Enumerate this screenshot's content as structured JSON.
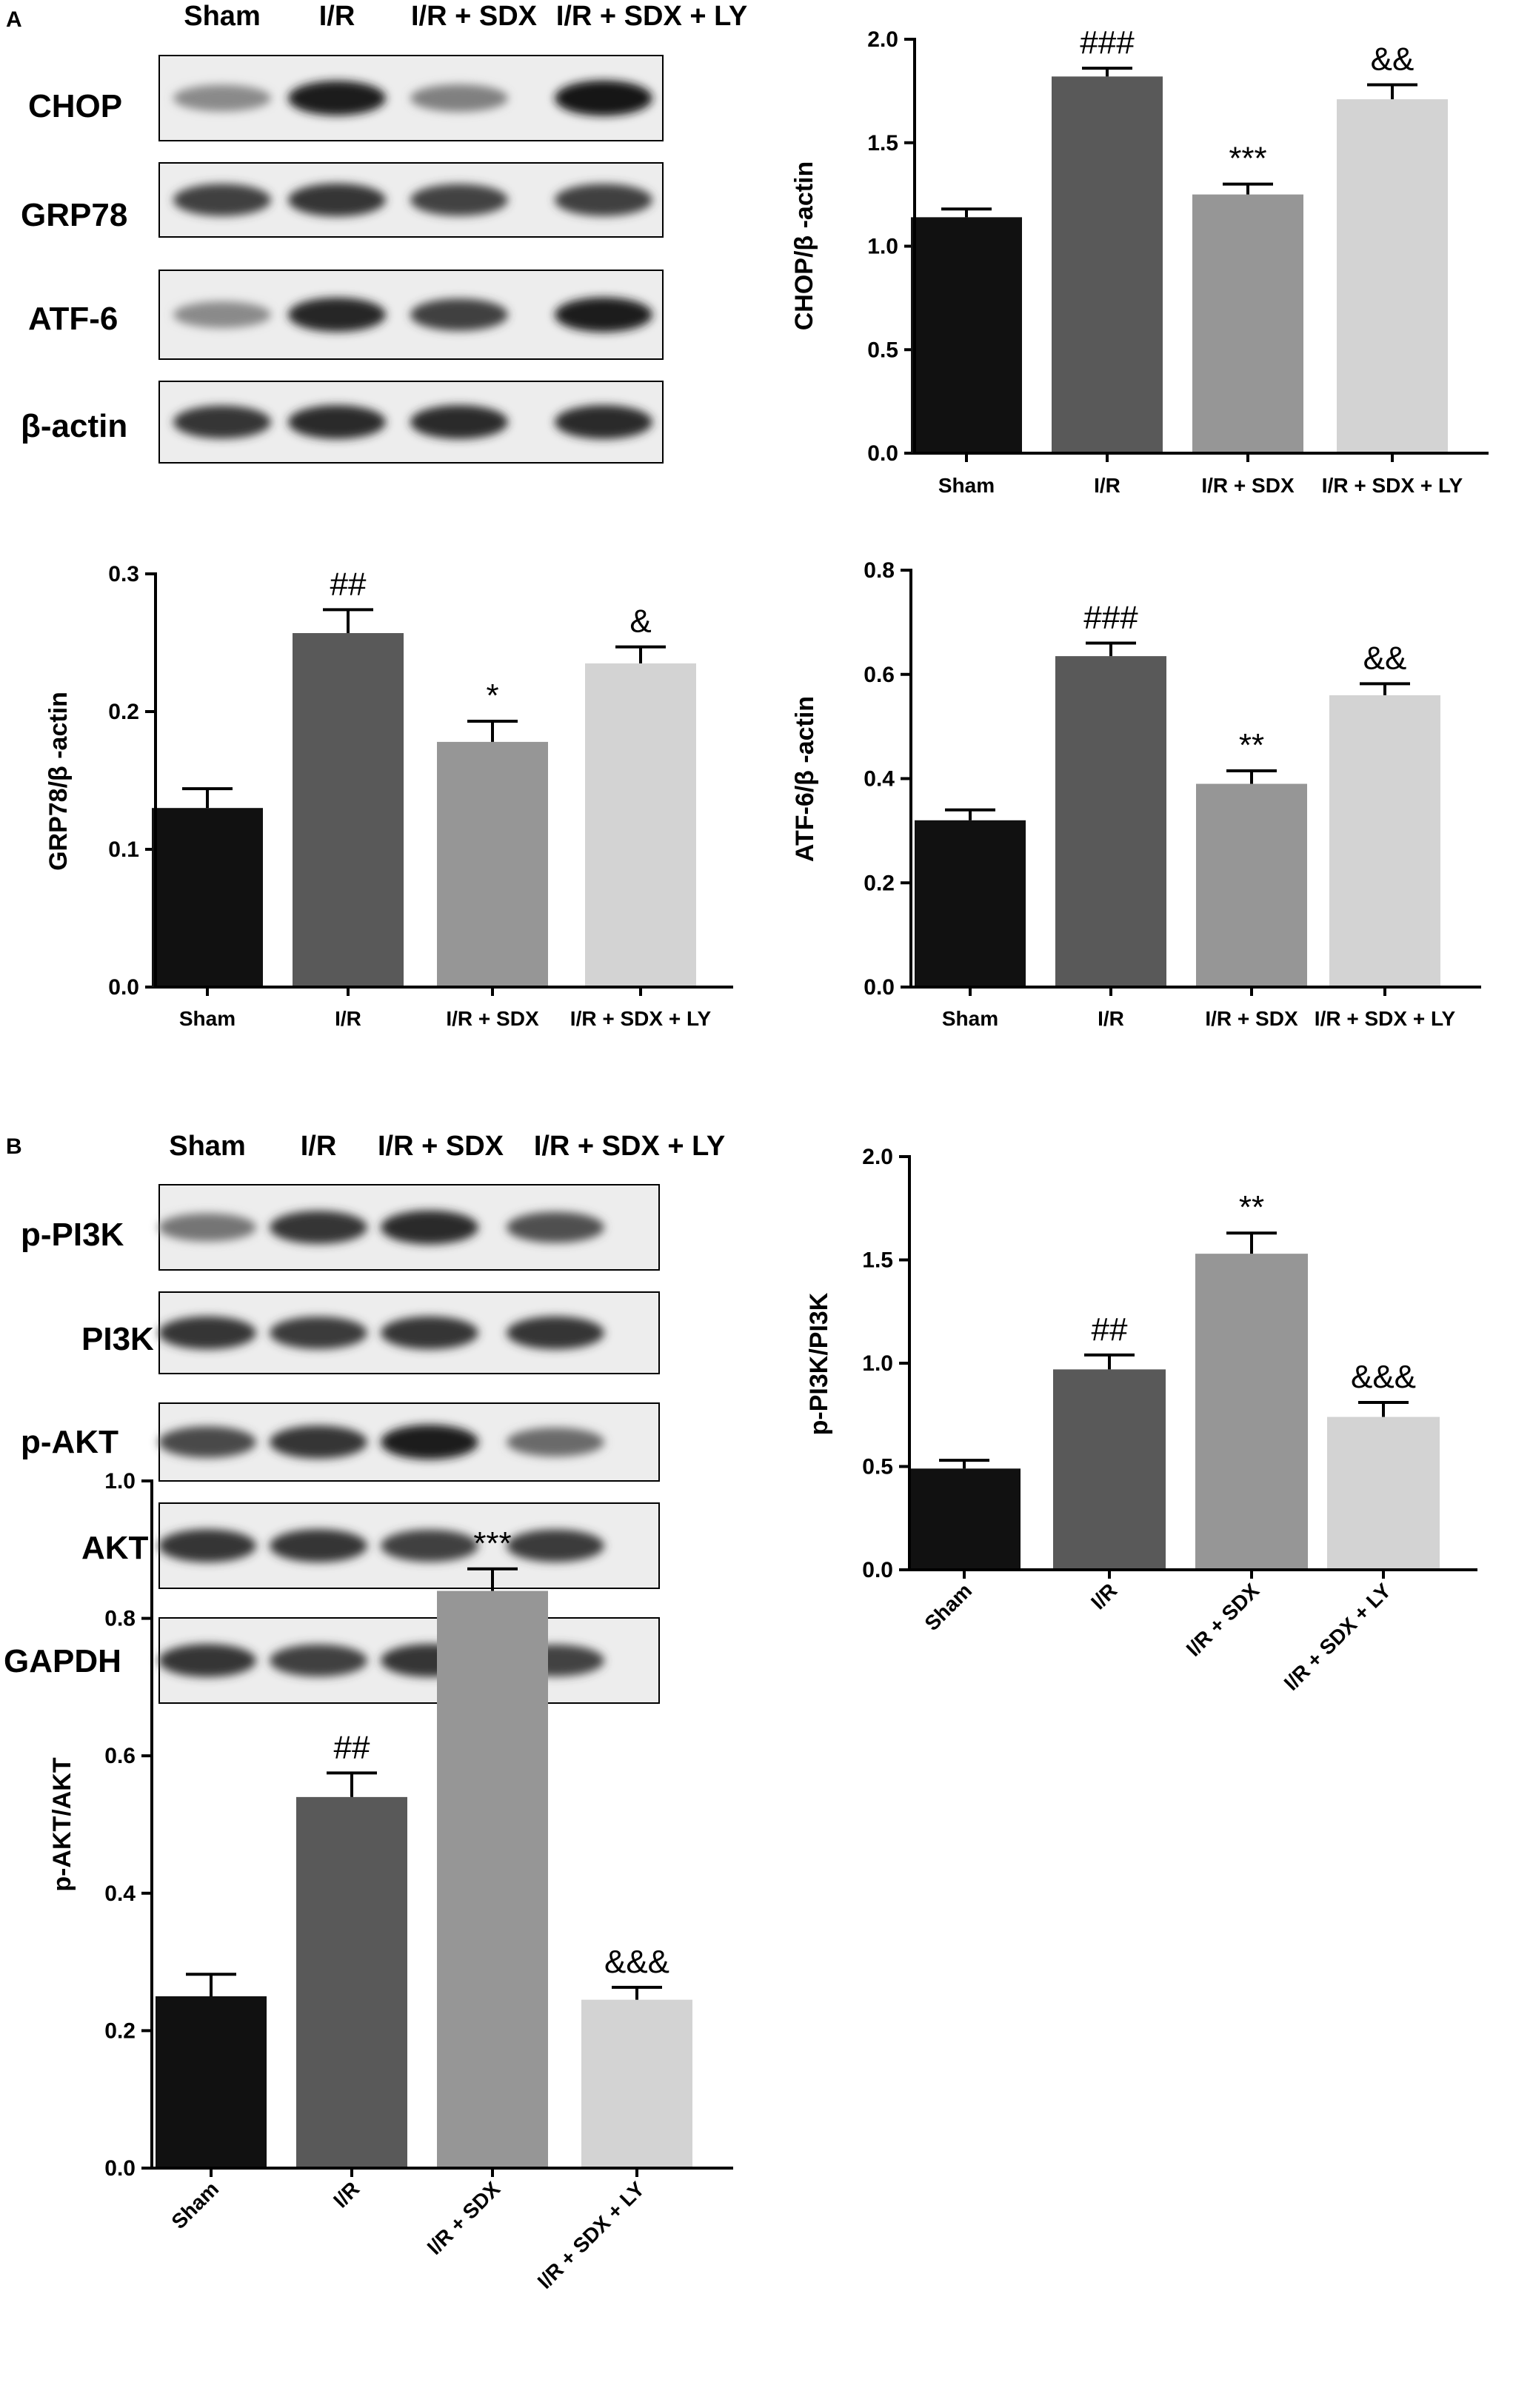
{
  "panels": [
    {
      "letter": "A"
    },
    {
      "letter": "B"
    }
  ],
  "blots": [
    {
      "lanes": [
        "Sham",
        "I/R",
        "I/R + SDX",
        "I/R + SDX + LY"
      ],
      "rows": [
        {
          "label": "CHOP",
          "intensity": [
            0.45,
            0.95,
            0.5,
            1.0
          ]
        },
        {
          "label": "GRP78",
          "intensity": [
            0.8,
            0.85,
            0.78,
            0.8
          ]
        },
        {
          "label": "ATF-6",
          "intensity": [
            0.45,
            0.92,
            0.8,
            0.95
          ]
        },
        {
          "label": "β-actin",
          "intensity": [
            0.85,
            0.9,
            0.9,
            0.9
          ]
        }
      ]
    },
    {
      "lanes": [
        "Sham",
        "I/R",
        "I/R + SDX",
        "I/R + SDX + LY"
      ],
      "rows": [
        {
          "label": "p-PI3K",
          "intensity": [
            0.55,
            0.85,
            0.9,
            0.72
          ]
        },
        {
          "label": "PI3K",
          "intensity": [
            0.85,
            0.82,
            0.85,
            0.85
          ]
        },
        {
          "label": "p-AKT",
          "intensity": [
            0.75,
            0.85,
            0.95,
            0.6
          ]
        },
        {
          "label": "AKT",
          "intensity": [
            0.85,
            0.85,
            0.8,
            0.82
          ]
        },
        {
          "label": "GAPDH",
          "intensity": [
            0.85,
            0.8,
            0.85,
            0.78
          ]
        }
      ]
    }
  ],
  "chart_data": [
    {
      "type": "bar",
      "ylabel": "CHOP/β -actin",
      "categories": [
        "Sham",
        "I/R",
        "I/R + SDX",
        "I/R + SDX + LY"
      ],
      "values": [
        1.14,
        1.82,
        1.25,
        1.71
      ],
      "errors": [
        0.04,
        0.04,
        0.05,
        0.07
      ],
      "annotations": [
        "",
        "###",
        "***",
        "&&"
      ],
      "ylim": [
        0,
        2.0
      ],
      "yticks": [
        "0.0",
        "0.5",
        "1.0",
        "1.5",
        "2.0"
      ],
      "tickValues": [
        0,
        0.5,
        1.0,
        1.5,
        2.0
      ],
      "colors": [
        "#111111",
        "#595959",
        "#969696",
        "#d3d3d3"
      ],
      "xtick_rotation": 0
    },
    {
      "type": "bar",
      "ylabel": "GRP78/β -actin",
      "categories": [
        "Sham",
        "I/R",
        "I/R + SDX",
        "I/R + SDX + LY"
      ],
      "values": [
        0.13,
        0.257,
        0.178,
        0.235
      ],
      "errors": [
        0.014,
        0.017,
        0.015,
        0.012
      ],
      "annotations": [
        "",
        "##",
        "*",
        "&"
      ],
      "ylim": [
        0,
        0.3
      ],
      "yticks": [
        "0.0",
        "0.1",
        "0.2",
        "0.3"
      ],
      "tickValues": [
        0,
        0.1,
        0.2,
        0.3
      ],
      "colors": [
        "#111111",
        "#595959",
        "#969696",
        "#d3d3d3"
      ],
      "xtick_rotation": 0
    },
    {
      "type": "bar",
      "ylabel": "ATF-6/β -actin",
      "categories": [
        "Sham",
        "I/R",
        "I/R + SDX",
        "I/R + SDX + LY"
      ],
      "values": [
        0.32,
        0.635,
        0.39,
        0.56
      ],
      "errors": [
        0.02,
        0.025,
        0.025,
        0.022
      ],
      "annotations": [
        "",
        "###",
        "**",
        "&&"
      ],
      "ylim": [
        0,
        0.8
      ],
      "yticks": [
        "0.0",
        "0.2",
        "0.4",
        "0.6",
        "0.8"
      ],
      "tickValues": [
        0,
        0.2,
        0.4,
        0.6,
        0.8
      ],
      "colors": [
        "#111111",
        "#595959",
        "#969696",
        "#d3d3d3"
      ],
      "xtick_rotation": 0
    },
    {
      "type": "bar",
      "ylabel": "p-PI3K/PI3K",
      "categories": [
        "Sham",
        "I/R",
        "I/R + SDX",
        "I/R + SDX + LY"
      ],
      "values": [
        0.49,
        0.97,
        1.53,
        0.74
      ],
      "errors": [
        0.04,
        0.07,
        0.1,
        0.07
      ],
      "annotations": [
        "",
        "##",
        "**",
        "&&&"
      ],
      "ylim": [
        0,
        2.0
      ],
      "yticks": [
        "0.0",
        "0.5",
        "1.0",
        "1.5",
        "2.0"
      ],
      "tickValues": [
        0,
        0.5,
        1.0,
        1.5,
        2.0
      ],
      "colors": [
        "#111111",
        "#595959",
        "#969696",
        "#d3d3d3"
      ],
      "xtick_rotation": -45
    },
    {
      "type": "bar",
      "ylabel": "p-AKT/AKT",
      "categories": [
        "Sham",
        "I/R",
        "I/R + SDX",
        "I/R + SDX + LY"
      ],
      "values": [
        0.25,
        0.54,
        0.84,
        0.245
      ],
      "errors": [
        0.032,
        0.035,
        0.032,
        0.018
      ],
      "annotations": [
        "",
        "##",
        "***",
        "&&&"
      ],
      "ylim": [
        0,
        1.0
      ],
      "yticks": [
        "0.0",
        "0.2",
        "0.4",
        "0.6",
        "0.8",
        "1.0"
      ],
      "tickValues": [
        0,
        0.2,
        0.4,
        0.6,
        0.8,
        1.0
      ],
      "colors": [
        "#111111",
        "#595959",
        "#969696",
        "#d3d3d3"
      ],
      "xtick_rotation": -45
    }
  ]
}
